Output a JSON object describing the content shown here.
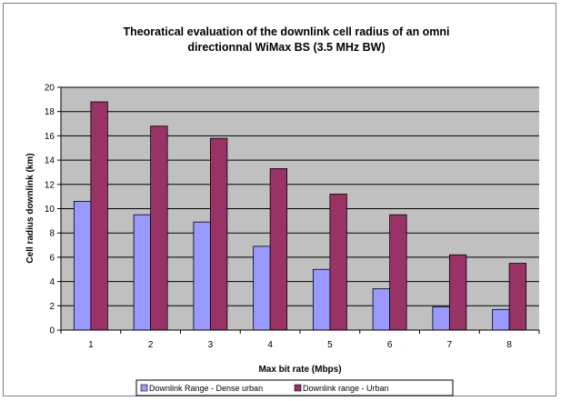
{
  "chart_data": {
    "type": "bar",
    "title": [
      "Theoratical evaluation of the downlink cell radius of an omni",
      "directionnal WiMax BS (3.5 MHz BW)"
    ],
    "xlabel": "Max bit rate (Mbps)",
    "ylabel": "Cell radius downlink (km)",
    "categories": [
      "1",
      "2",
      "3",
      "4",
      "5",
      "6",
      "7",
      "8"
    ],
    "ylim": [
      0,
      20
    ],
    "yticks": [
      0,
      2,
      4,
      6,
      8,
      10,
      12,
      14,
      16,
      18,
      20
    ],
    "grid": true,
    "legend_position": "bottom",
    "series": [
      {
        "name": "Downlink Range - Dense urban",
        "color": "#9999ff",
        "values": [
          10.6,
          9.5,
          8.9,
          6.9,
          5.0,
          3.4,
          1.9,
          1.7
        ]
      },
      {
        "name": "Downlink range - Urban",
        "color": "#993366",
        "values": [
          18.8,
          16.8,
          15.8,
          13.3,
          11.2,
          9.5,
          6.2,
          5.5
        ]
      }
    ],
    "plot_background": "#c0c0c0"
  }
}
